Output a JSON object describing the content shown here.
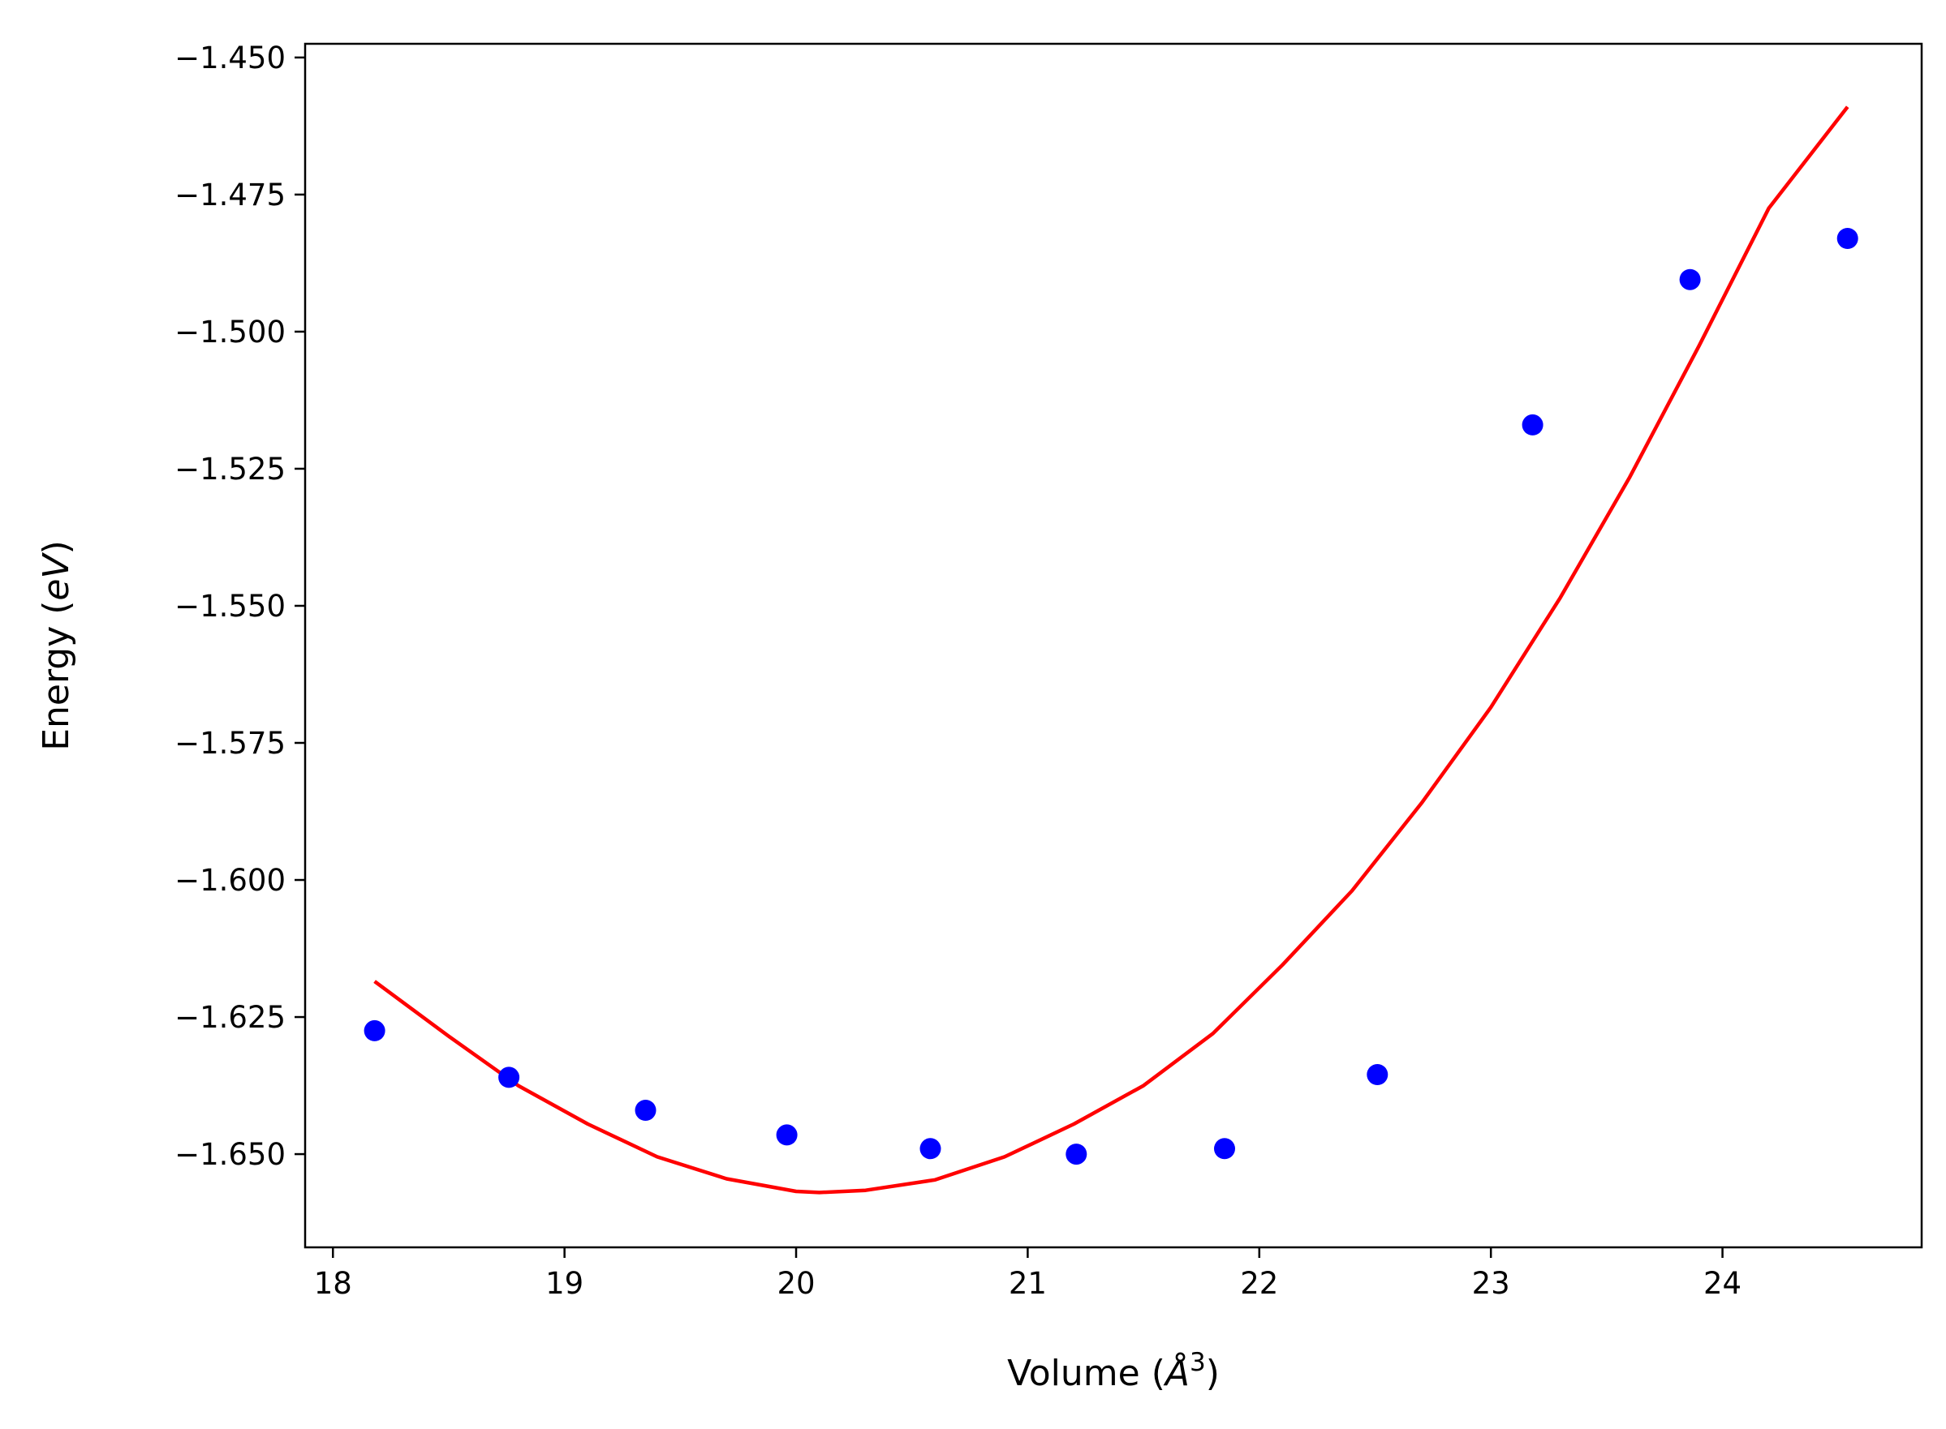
{
  "chart_data": {
    "type": "scatter",
    "title": "",
    "xlabel": {
      "prefix": "Volume (",
      "symbol": "Å",
      "exponent": "3",
      "suffix": ")"
    },
    "ylabel": {
      "prefix": "Energy (",
      "symbol": "eV",
      "suffix": ")"
    },
    "xlim": [
      17.88,
      24.86
    ],
    "ylim": [
      -1.667,
      -1.4475
    ],
    "xticks": [
      18,
      19,
      20,
      21,
      22,
      23,
      24
    ],
    "xtick_labels": [
      "18",
      "19",
      "20",
      "21",
      "22",
      "23",
      "24"
    ],
    "yticks": [
      -1.65,
      -1.625,
      -1.6,
      -1.575,
      -1.55,
      -1.525,
      -1.5,
      -1.475,
      -1.45
    ],
    "ytick_labels": [
      "−1.650",
      "−1.625",
      "−1.600",
      "−1.575",
      "−1.550",
      "−1.525",
      "−1.500",
      "−1.475",
      "−1.450"
    ],
    "grid": false,
    "colors": {
      "points": "#0000ff",
      "fit": "#ff0000",
      "axes": "#000000"
    },
    "series": [
      {
        "kind": "scatter",
        "x": [
          18.18,
          18.76,
          19.35,
          19.96,
          20.58,
          21.21,
          21.85,
          22.51,
          23.18,
          23.86,
          24.54
        ],
        "y": [
          -1.6275,
          -1.636,
          -1.642,
          -1.6465,
          -1.649,
          -1.65,
          -1.649,
          -1.6355,
          -1.517,
          -1.4905,
          -1.483
        ]
      },
      {
        "kind": "line",
        "x": [
          18.18,
          18.5,
          18.8,
          19.1,
          19.4,
          19.7,
          20.0,
          20.1,
          20.3,
          20.6,
          20.9,
          21.2,
          21.5,
          21.8,
          22.1,
          22.4,
          22.7,
          23.0,
          23.3,
          23.6,
          23.9,
          24.2,
          24.54
        ],
        "y": [
          -1.6185,
          -1.6285,
          -1.6375,
          -1.6445,
          -1.6505,
          -1.6545,
          -1.6568,
          -1.657,
          -1.6566,
          -1.6547,
          -1.6505,
          -1.6445,
          -1.6375,
          -1.628,
          -1.6155,
          -1.602,
          -1.586,
          -1.5685,
          -1.5485,
          -1.5265,
          -1.5025,
          -1.4775,
          -1.459
        ]
      }
    ]
  }
}
